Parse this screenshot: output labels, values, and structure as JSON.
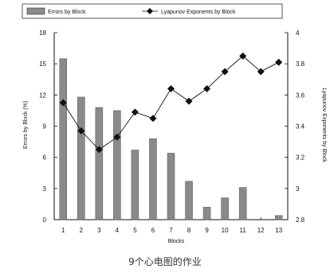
{
  "chart_data": {
    "type": "bar+line",
    "categories": [
      "1",
      "2",
      "3",
      "4",
      "5",
      "6",
      "7",
      "8",
      "9",
      "10",
      "11",
      "12",
      "13"
    ],
    "series": [
      {
        "name": "Errors by Block",
        "type": "bar",
        "axis": "left",
        "values": [
          15.5,
          11.8,
          10.8,
          10.5,
          6.7,
          7.8,
          6.4,
          3.7,
          1.2,
          2.1,
          3.1,
          0,
          0.4
        ]
      },
      {
        "name": "Lyapunov Exponents by Block",
        "type": "line",
        "axis": "right",
        "values": [
          3.55,
          3.37,
          3.25,
          3.33,
          3.49,
          3.45,
          3.64,
          3.56,
          3.64,
          3.75,
          3.85,
          3.75,
          3.81
        ]
      }
    ],
    "xlabel": "Blocks",
    "ylabel_left": "Errors by Block (%)",
    "ylabel_right": "Lyapunov Exponents by Block",
    "ylim_left": [
      0,
      18
    ],
    "yticks_left": [
      0,
      3,
      6,
      9,
      12,
      15,
      18
    ],
    "ylim_right": [
      2.8,
      4.0
    ],
    "yticks_right": [
      2.8,
      3.0,
      3.2,
      3.4,
      3.6,
      3.8,
      4.0
    ],
    "ytick_labels_right": [
      "2.8",
      "3",
      "3.2",
      "3.4",
      "3.6",
      "3.8",
      "4"
    ],
    "grid": false,
    "legend": "top",
    "colors": {
      "bar": "#8a8a8a",
      "line": "#111111"
    }
  },
  "caption": "9个心电图的作业"
}
